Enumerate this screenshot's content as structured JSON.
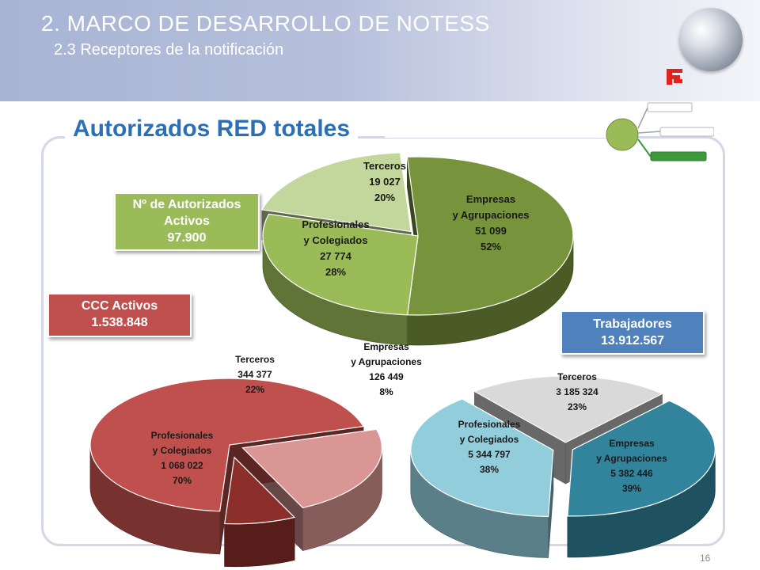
{
  "header": {
    "title": "2. MARCO DE DESARROLLO DE NOTESS",
    "subtitle": "2.3 Receptores de la notificación"
  },
  "section_title": "Autorizados RED totales",
  "boxes": {
    "autorizados": {
      "line1": "Nº de Autorizados",
      "line2": "Activos",
      "value": "97.900"
    },
    "ccc": {
      "line1": "CCC Activos",
      "value": "1.538.848"
    },
    "trabajadores": {
      "line1": "Trabajadores",
      "value": "13.912.567"
    }
  },
  "page_number": "16",
  "colors": {
    "header_start": "#a8b4d4",
    "title_blue": "#2b6fb5",
    "green": "#9bbb59",
    "red": "#c0504d",
    "blue": "#4f81bd"
  },
  "chart_data": [
    {
      "type": "pie",
      "categories": [
        "Empresas y Agrupaciones",
        "Profesionales y Colegiados",
        "Terceros"
      ],
      "values": [
        51099,
        27774,
        19027
      ],
      "percent": [
        52,
        28,
        20
      ],
      "value_labels": [
        "51 099",
        "27 774",
        "19 027"
      ],
      "percent_labels": [
        "52%",
        "28%",
        "20%"
      ],
      "colors": [
        "#77933c",
        "#9bbb59",
        "#c3d69b"
      ]
    },
    {
      "type": "pie",
      "categories": [
        "Profesionales y Colegiados",
        "Terceros",
        "Empresas y Agrupaciones"
      ],
      "values": [
        1068022,
        344377,
        126449
      ],
      "percent": [
        70,
        22,
        8
      ],
      "value_labels": [
        "1 068 022",
        "344 377",
        "126 449"
      ],
      "percent_labels": [
        "70%",
        "22%",
        "8%"
      ],
      "colors": [
        "#c0504d",
        "#d99694",
        "#8c2f2b"
      ]
    },
    {
      "type": "pie",
      "categories": [
        "Profesionales y Colegiados",
        "Terceros",
        "Empresas y Agrupaciones"
      ],
      "values": [
        5344797,
        3185324,
        5382446
      ],
      "percent": [
        38,
        23,
        39
      ],
      "value_labels": [
        "5 344 797",
        "3 185 324",
        "5 382 446"
      ],
      "percent_labels": [
        "38%",
        "23%",
        "39%"
      ],
      "colors": [
        "#92cddc",
        "#d9d9d9",
        "#31849b"
      ]
    }
  ]
}
